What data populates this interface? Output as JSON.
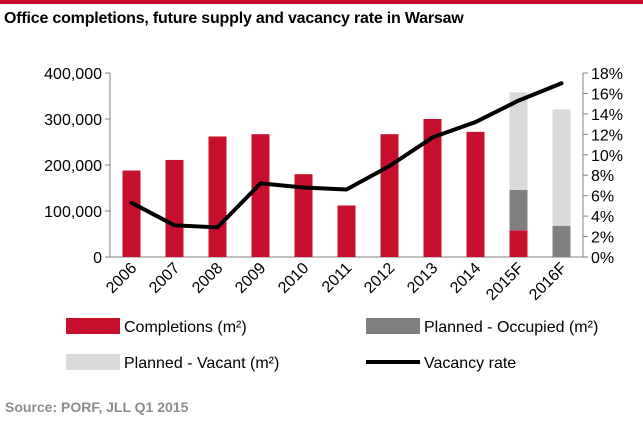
{
  "title": "Office completions, future supply and vacancy rate in Warsaw",
  "source": "Source: PORF, JLL Q1 2015",
  "chart_data": {
    "type": "bar",
    "title": "Office completions, future supply and vacancy rate in Warsaw",
    "categories": [
      "2006",
      "2007",
      "2008",
      "2009",
      "2010",
      "2011",
      "2012",
      "2013",
      "2014",
      "2015F",
      "2016F"
    ],
    "series": [
      {
        "name": "Completions (m²)",
        "type": "bar",
        "stack": "supply",
        "color": "#c8102e",
        "values": [
          188000,
          211000,
          262000,
          267000,
          180000,
          112000,
          267000,
          300000,
          272000,
          58000,
          0
        ]
      },
      {
        "name": "Planned - Occupied (m²)",
        "type": "bar",
        "stack": "supply",
        "color": "#808080",
        "values": [
          0,
          0,
          0,
          0,
          0,
          0,
          0,
          0,
          0,
          88000,
          68000
        ]
      },
      {
        "name": "Planned - Vacant (m²)",
        "type": "bar",
        "stack": "supply",
        "color": "#d9d9d9",
        "values": [
          0,
          0,
          0,
          0,
          0,
          0,
          0,
          0,
          0,
          212000,
          253000
        ]
      },
      {
        "name": "Vacancy rate",
        "type": "line",
        "axis": "right",
        "color": "#000000",
        "values": [
          5.3,
          3.1,
          2.9,
          7.2,
          6.8,
          6.6,
          8.9,
          11.7,
          13.2,
          15.3,
          17.0
        ]
      }
    ],
    "yticks_left": [
      "0",
      "100,000",
      "200,000",
      "300,000",
      "400,000"
    ],
    "ylim_left": [
      0,
      400000
    ],
    "yticks_right": [
      "0%",
      "2%",
      "4%",
      "6%",
      "8%",
      "10%",
      "12%",
      "14%",
      "16%",
      "18%"
    ],
    "ylim_right": [
      0,
      18
    ],
    "grid": false,
    "legend_position": "bottom"
  }
}
